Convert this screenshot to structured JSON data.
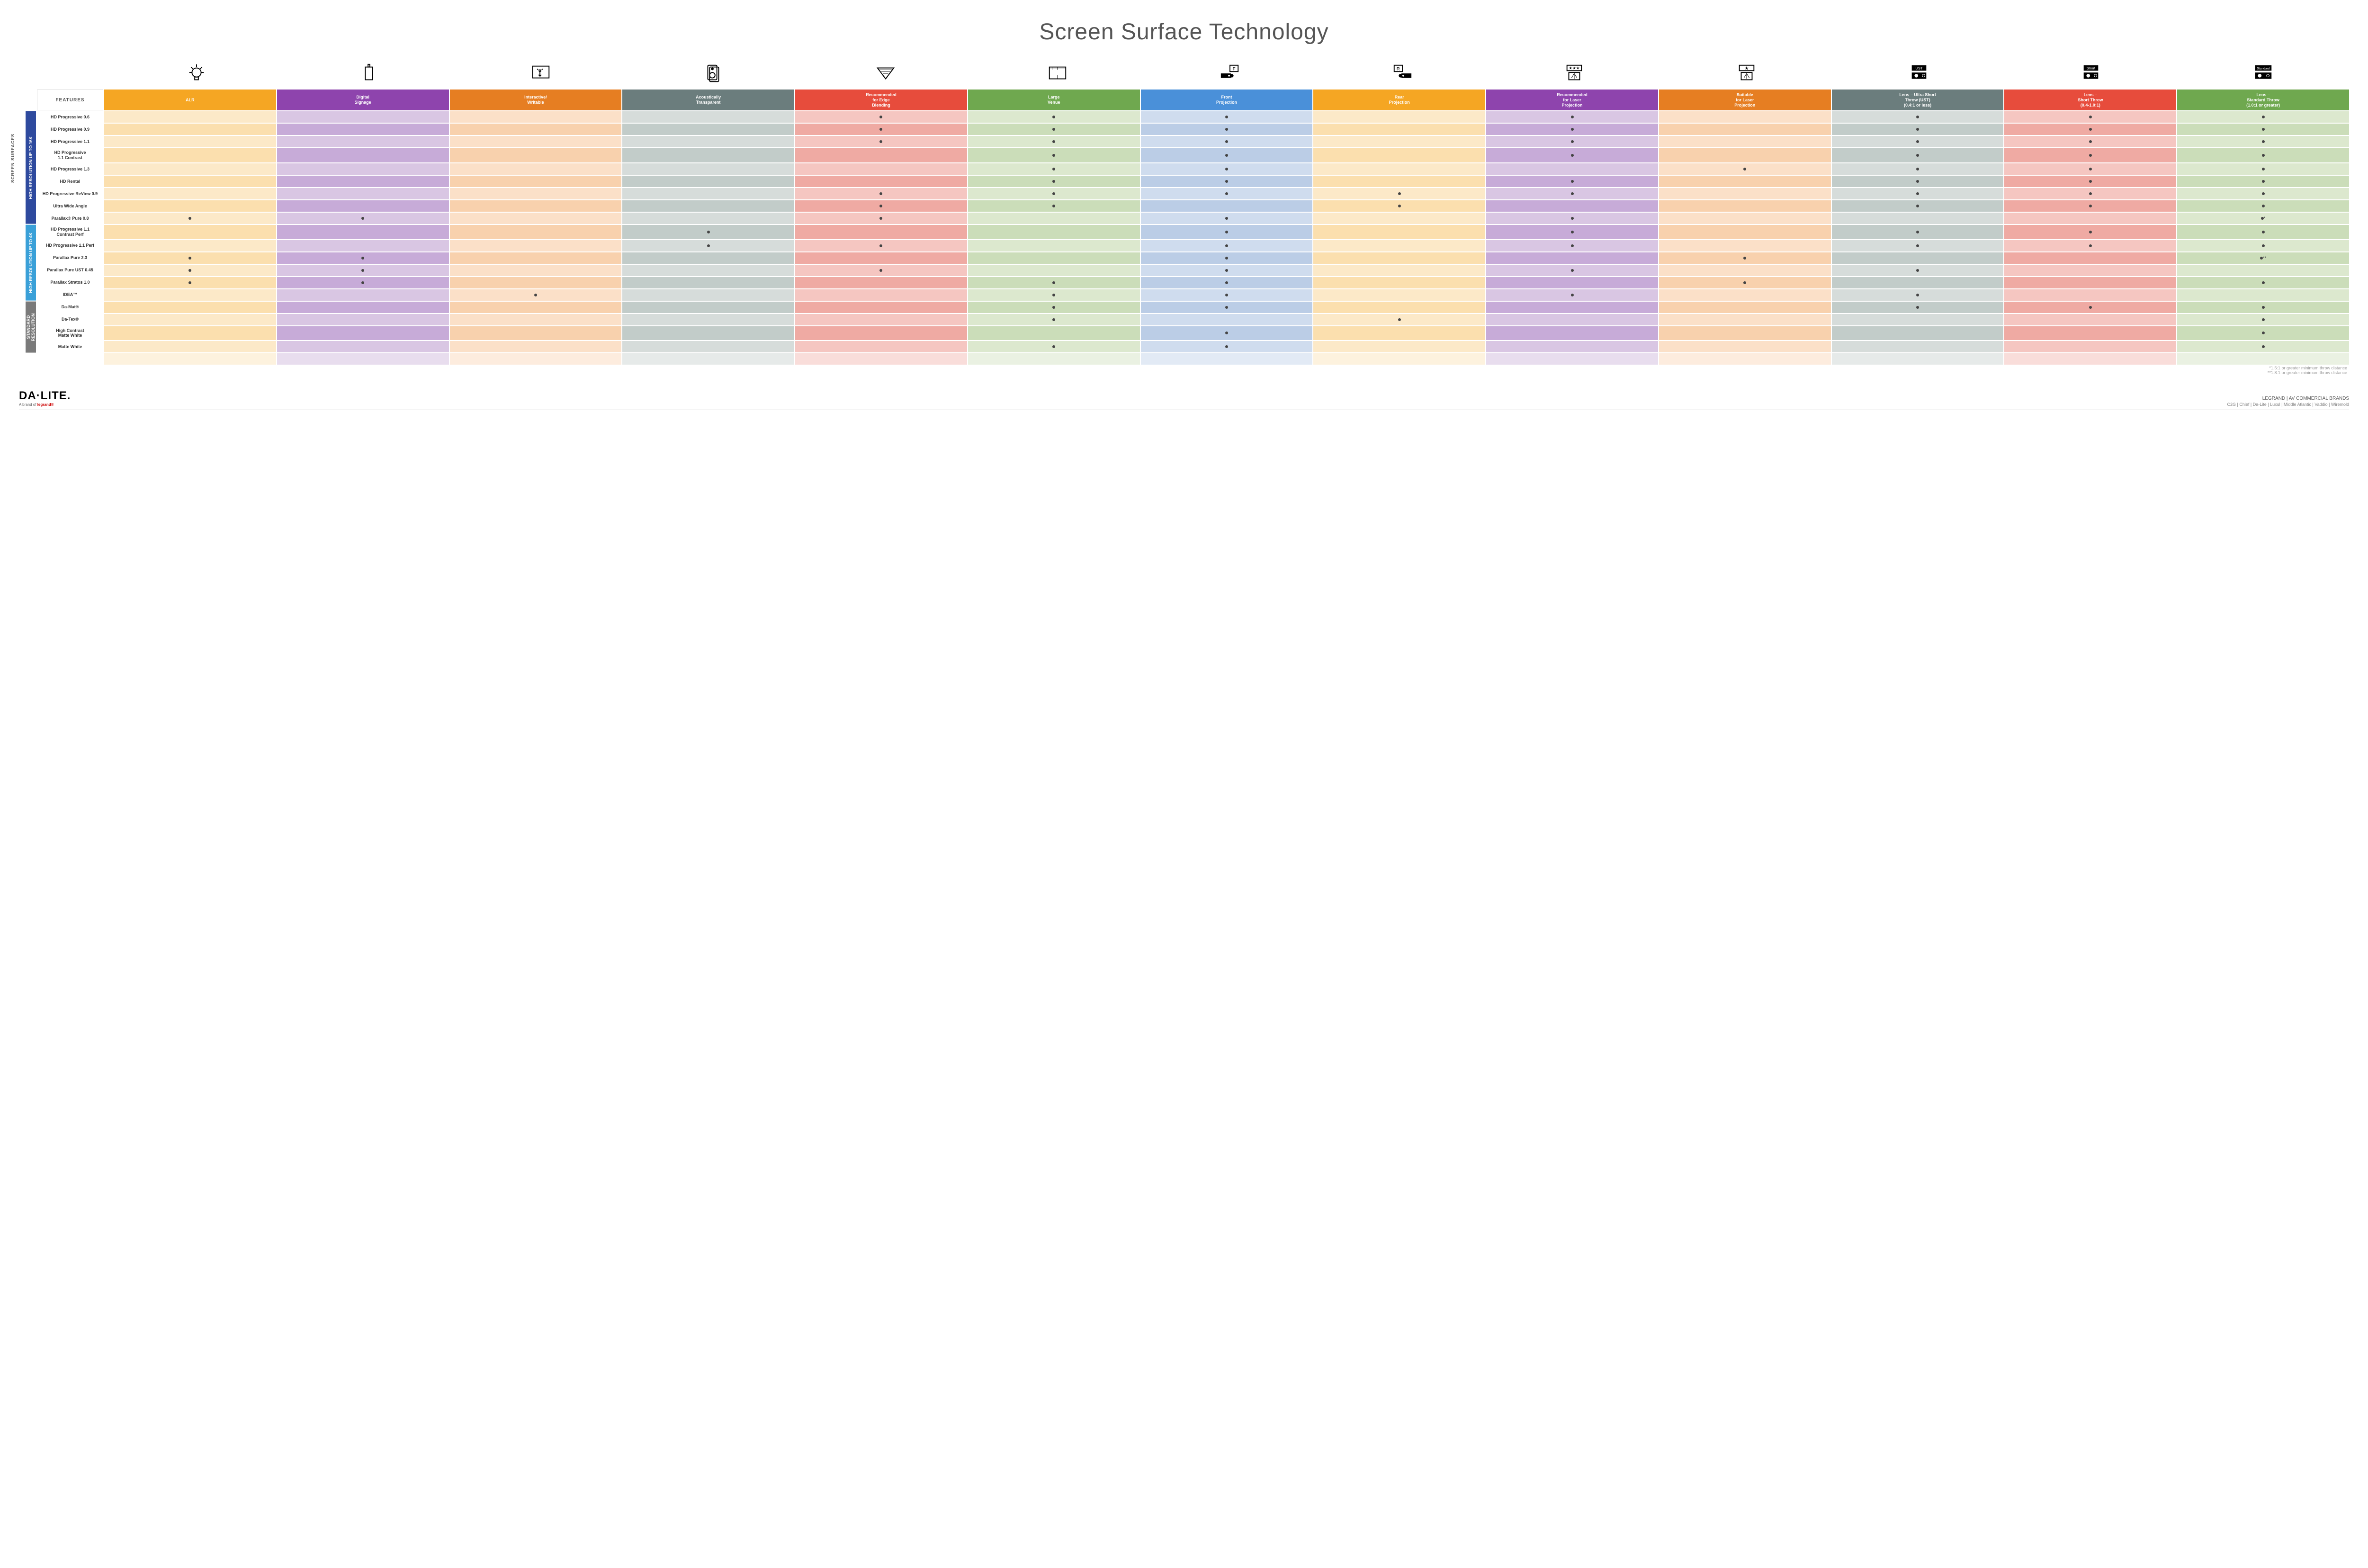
{
  "title": "Screen Surface Technology",
  "features_label": "FEATURES",
  "outer_side_label": "SCREEN SURFACES",
  "columns": [
    {
      "key": "alr",
      "label": "ALR",
      "bg": "#f5a623",
      "pal": [
        "#fce9c8",
        "#fbdfae"
      ]
    },
    {
      "key": "signage",
      "label": "Digital\nSignage",
      "bg": "#8e44ad",
      "pal": [
        "#d9c6e3",
        "#c7abd8"
      ]
    },
    {
      "key": "interact",
      "label": "Interactive/\nWritable",
      "bg": "#e67e22",
      "pal": [
        "#fbe0c8",
        "#f8d1ad"
      ]
    },
    {
      "key": "acoustic",
      "label": "Acoustically\nTransparent",
      "bg": "#6b7d7d",
      "pal": [
        "#d6dcda",
        "#c2ccc9"
      ]
    },
    {
      "key": "edge",
      "label": "Recommended\nfor Edge\nBlending",
      "bg": "#e74c3c",
      "pal": [
        "#f5c6c1",
        "#efaaa3"
      ]
    },
    {
      "key": "large",
      "label": "Large\nVenue",
      "bg": "#6fa84f",
      "pal": [
        "#dce8ce",
        "#cbddb9"
      ]
    },
    {
      "key": "front",
      "label": "Front\nProjection",
      "bg": "#4a90d9",
      "pal": [
        "#cfdcee",
        "#bbcde6"
      ]
    },
    {
      "key": "rear",
      "label": "Rear\nProjection",
      "bg": "#f5a623",
      "pal": [
        "#fce9c8",
        "#fbdfae"
      ]
    },
    {
      "key": "reclaser",
      "label": "Recommended\nfor Laser\nProjection",
      "bg": "#8e44ad",
      "pal": [
        "#d9c6e3",
        "#c7abd8"
      ]
    },
    {
      "key": "suitlaser",
      "label": "Suitable\nfor Laser\nProjection",
      "bg": "#e67e22",
      "pal": [
        "#fbe0c8",
        "#f8d1ad"
      ]
    },
    {
      "key": "ust",
      "label": "Lens – Ultra Short\nThrow (UST)\n(0.4:1 or less)",
      "bg": "#6b7d7d",
      "pal": [
        "#d6dcda",
        "#c2ccc9"
      ]
    },
    {
      "key": "short",
      "label": "Lens –\nShort Throw\n(0.4-1.0:1)",
      "bg": "#e74c3c",
      "pal": [
        "#f5c6c1",
        "#efaaa3"
      ]
    },
    {
      "key": "std",
      "label": "Lens –\nStandard Throw\n(1.0:1 or greater)",
      "bg": "#6fa84f",
      "pal": [
        "#dce8ce",
        "#cbddb9"
      ]
    }
  ],
  "groups": [
    {
      "label": "HIGH RESOLUTION UP TO 16K",
      "bg": "#2e4a9e",
      "rows": [
        {
          "label": "HD Progressive 0.6",
          "dots": {
            "edge": "•",
            "large": "•",
            "front": "•",
            "reclaser": "•",
            "ust": "•",
            "short": "•",
            "std": "•"
          }
        },
        {
          "label": "HD Progressive 0.9",
          "dots": {
            "edge": "•",
            "large": "•",
            "front": "•",
            "reclaser": "•",
            "ust": "•",
            "short": "•",
            "std": "•"
          }
        },
        {
          "label": "HD Progressive 1.1",
          "dots": {
            "edge": "•",
            "large": "•",
            "front": "•",
            "reclaser": "•",
            "ust": "•",
            "short": "•",
            "std": "•"
          }
        },
        {
          "label": "HD Progressive\n1.1 Contrast",
          "dots": {
            "large": "•",
            "front": "•",
            "reclaser": "•",
            "ust": "•",
            "short": "•",
            "std": "•"
          }
        },
        {
          "label": "HD Progressive 1.3",
          "dots": {
            "large": "•",
            "front": "•",
            "suitlaser": "•",
            "ust": "•",
            "short": "•",
            "std": "•"
          }
        },
        {
          "label": "HD Rental",
          "dots": {
            "large": "•",
            "front": "•",
            "reclaser": "•",
            "ust": "•",
            "short": "•",
            "std": "•"
          }
        },
        {
          "label": "HD Progressive ReView 0.9",
          "dots": {
            "edge": "•",
            "large": "•",
            "front": "•",
            "rear": "•",
            "reclaser": "•",
            "ust": "•",
            "short": "•",
            "std": "•"
          }
        },
        {
          "label": "Ultra Wide Angle",
          "dots": {
            "edge": "•",
            "large": "•",
            "rear": "•",
            "ust": "•",
            "short": "•",
            "std": "•"
          }
        },
        {
          "label": "Parallax® Pure 0.8",
          "dots": {
            "alr": "•",
            "signage": "•",
            "edge": "•",
            "front": "•",
            "reclaser": "•",
            "std": "•*"
          }
        }
      ]
    },
    {
      "label": "HIGH RESOLUTION UP TO 4K",
      "bg": "#3aa0d8",
      "rows": [
        {
          "label": "HD Progressive 1.1\nContrast Perf",
          "dots": {
            "acoustic": "•",
            "front": "•",
            "reclaser": "•",
            "ust": "•",
            "short": "•",
            "std": "•"
          }
        },
        {
          "label": "HD Progressive 1.1 Perf",
          "dots": {
            "acoustic": "•",
            "edge": "•",
            "front": "•",
            "reclaser": "•",
            "ust": "•",
            "short": "•",
            "std": "•"
          }
        },
        {
          "label": "Parallax Pure 2.3",
          "dots": {
            "alr": "•",
            "signage": "•",
            "front": "•",
            "suitlaser": "•",
            "std": "•**"
          }
        },
        {
          "label": "Parallax Pure UST 0.45",
          "dots": {
            "alr": "•",
            "signage": "•",
            "edge": "•",
            "front": "•",
            "reclaser": "•",
            "ust": "•"
          }
        },
        {
          "label": "Parallax Stratos 1.0",
          "dots": {
            "alr": "•",
            "signage": "•",
            "large": "•",
            "front": "•",
            "suitlaser": "•",
            "std": "•"
          }
        },
        {
          "label": "IDEA™",
          "dots": {
            "interact": "•",
            "large": "•",
            "front": "•",
            "reclaser": "•",
            "ust": "•"
          }
        }
      ]
    },
    {
      "label": "STANDARD\nRESOLUTION",
      "bg": "#7a7a7a",
      "rows": [
        {
          "label": "Da-Mat®",
          "dots": {
            "large": "•",
            "front": "•",
            "ust": "•",
            "short": "•",
            "std": "•"
          }
        },
        {
          "label": "Da-Tex®",
          "dots": {
            "large": "•",
            "rear": "•",
            "std": "•"
          }
        },
        {
          "label": "High Contrast\nMatte White",
          "dots": {
            "front": "•",
            "std": "•"
          }
        },
        {
          "label": "Matte White",
          "dots": {
            "large": "•",
            "front": "•",
            "std": "•"
          }
        }
      ]
    }
  ],
  "footnotes": [
    "*1.5:1 or greater minimum throw distance",
    "**1.8:1 or greater minimum throw distance"
  ],
  "footer": {
    "brand": "DA·LITE.",
    "brand_sub_prefix": "A brand of ",
    "brand_sub_brand": "legrand®",
    "right_title": "LEGRAND | AV COMMERCIAL BRANDS",
    "right_brands": "C2G  |  Chief  |  Da-Lite  |  Luxul  |  Middle Atlantic  |  Vaddio  |  Wiremold"
  },
  "icons": [
    "bulb",
    "signage",
    "touch",
    "speaker",
    "blend",
    "venue",
    "front",
    "rear",
    "reclaser",
    "suitlaser",
    "ust",
    "short",
    "standard"
  ]
}
